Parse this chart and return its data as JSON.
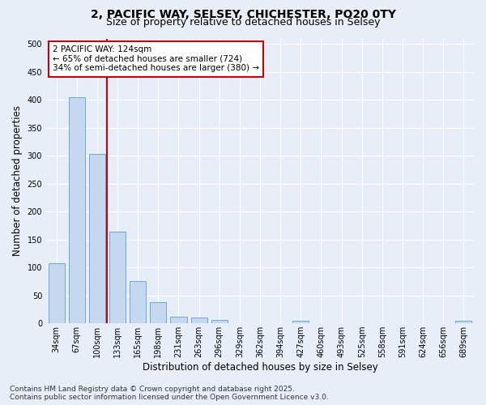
{
  "title_line1": "2, PACIFIC WAY, SELSEY, CHICHESTER, PO20 0TY",
  "title_line2": "Size of property relative to detached houses in Selsey",
  "xlabel": "Distribution of detached houses by size in Selsey",
  "ylabel": "Number of detached properties",
  "categories": [
    "34sqm",
    "67sqm",
    "100sqm",
    "133sqm",
    "165sqm",
    "198sqm",
    "231sqm",
    "263sqm",
    "296sqm",
    "329sqm",
    "362sqm",
    "394sqm",
    "427sqm",
    "460sqm",
    "493sqm",
    "525sqm",
    "558sqm",
    "591sqm",
    "624sqm",
    "656sqm",
    "689sqm"
  ],
  "values": [
    108,
    405,
    304,
    164,
    76,
    38,
    12,
    10,
    6,
    0,
    0,
    0,
    4,
    0,
    0,
    0,
    0,
    0,
    0,
    0,
    4
  ],
  "bar_color": "#c5d8f0",
  "bar_edge_color": "#6aaad4",
  "vline_color": "#cc0000",
  "annotation_line1": "2 PACIFIC WAY: 124sqm",
  "annotation_line2": "← 65% of detached houses are smaller (724)",
  "annotation_line3": "34% of semi-detached houses are larger (380) →",
  "annotation_box_color": "#ffffff",
  "annotation_box_edge": "#cc0000",
  "ylim": [
    0,
    510
  ],
  "yticks": [
    0,
    50,
    100,
    150,
    200,
    250,
    300,
    350,
    400,
    450,
    500
  ],
  "bg_color": "#e8eef8",
  "plot_bg_color": "#e8eef8",
  "footer_text": "Contains HM Land Registry data © Crown copyright and database right 2025.\nContains public sector information licensed under the Open Government Licence v3.0.",
  "title_fontsize": 10,
  "subtitle_fontsize": 9,
  "tick_fontsize": 7,
  "label_fontsize": 8.5,
  "annotation_fontsize": 7.5,
  "footer_fontsize": 6.5
}
